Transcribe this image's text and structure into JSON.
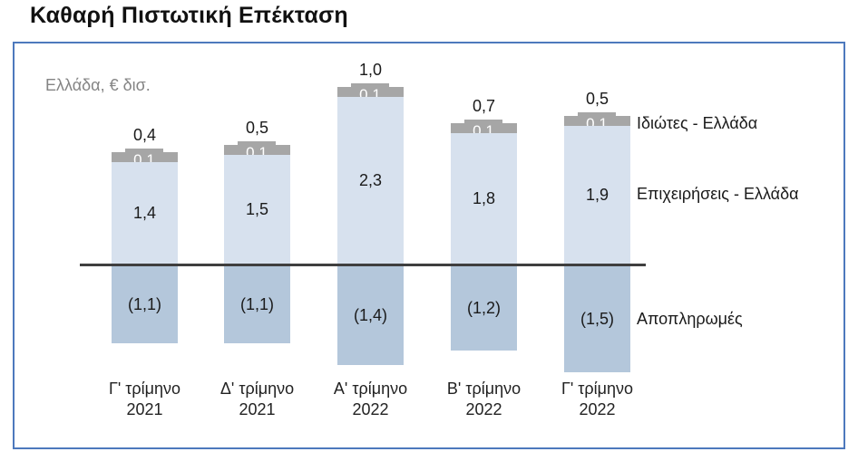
{
  "title": "Καθαρή Πιστωτική Επέκταση",
  "chart_data": {
    "type": "bar",
    "stacked": true,
    "subtitle": "Ελλάδα, € δισ.",
    "unit": "€ δισ.",
    "categories": [
      {
        "line1": "Γ' τρίμηνο",
        "line2": "2021"
      },
      {
        "line1": "Δ' τρίμηνο",
        "line2": "2021"
      },
      {
        "line1": "Α' τρίμηνο",
        "line2": "2022"
      },
      {
        "line1": "Β' τρίμηνο",
        "line2": "2022"
      },
      {
        "line1": "Γ' τρίμηνο",
        "line2": "2022"
      }
    ],
    "series": [
      {
        "name": "Ιδιώτες - Ελλάδα",
        "color": "#a6a6a6",
        "values": [
          0.1,
          0.1,
          0.1,
          0.1,
          0.1
        ],
        "labels": [
          "0,1",
          "0,1",
          "0,1",
          "0,1",
          "0,1"
        ]
      },
      {
        "name": "Επιχειρήσεις - Ελλάδα",
        "color": "#d7e1ee",
        "values": [
          1.4,
          1.5,
          2.3,
          1.8,
          1.9
        ],
        "labels": [
          "1,4",
          "1,5",
          "2,3",
          "1,8",
          "1,9"
        ]
      },
      {
        "name": "Αποπληρωμές",
        "color": "#b4c7db",
        "values": [
          -1.1,
          -1.1,
          -1.4,
          -1.2,
          -1.5
        ],
        "labels": [
          "(1,1)",
          "(1,1)",
          "(1,4)",
          "(1,2)",
          "(1,5)"
        ]
      }
    ],
    "totals": [
      "0,4",
      "0,5",
      "1,0",
      "0,7",
      "0,5"
    ],
    "totals_values": [
      0.4,
      0.5,
      1.0,
      0.7,
      0.5
    ],
    "axis": {
      "zero_line": true,
      "y_gridlines": false,
      "y_tick_labels": false
    },
    "colors": {
      "border": "#4d79bd",
      "zero_line": "#3f3f3f",
      "subtitle_text": "#848484",
      "label_text": "#1a1a1a",
      "cap_label_text": "#ffffff"
    }
  }
}
